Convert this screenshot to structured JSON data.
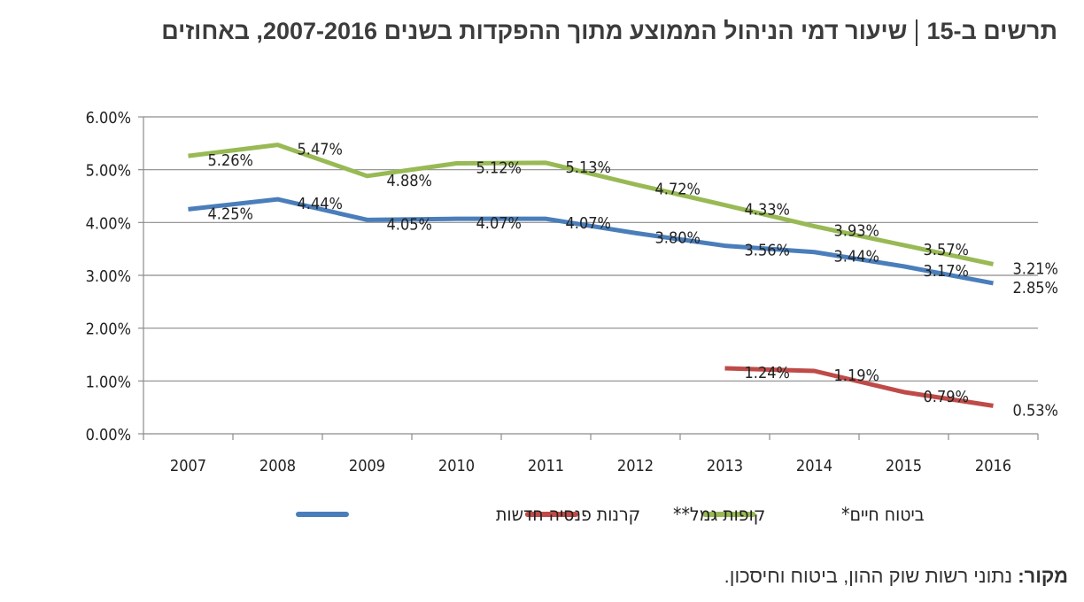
{
  "title": {
    "figure": "תרשים ב-15",
    "text": "שיעור דמי הניהול הממוצע מתוך ההפקדות בשנים 2007-2016, באחוזים"
  },
  "source": {
    "label": "מקור:",
    "text": "נתוני רשות שוק ההון, ביטוח וחיסכון."
  },
  "chart_data": {
    "type": "line",
    "categories": [
      "2007",
      "2008",
      "2009",
      "2010",
      "2011",
      "2012",
      "2013",
      "2014",
      "2015",
      "2016"
    ],
    "ylim": [
      0,
      6
    ],
    "yticks": [
      "0.00%",
      "1.00%",
      "2.00%",
      "3.00%",
      "4.00%",
      "5.00%",
      "6.00%"
    ],
    "grid": true,
    "legend_placement": "bottom",
    "series": [
      {
        "name": "קרנות פנסיה חדשות",
        "color": "#4a7ebb",
        "values": [
          4.25,
          4.44,
          4.05,
          4.07,
          4.07,
          3.8,
          3.56,
          3.44,
          3.17,
          2.85
        ]
      },
      {
        "name": "קופות גמל**",
        "color": "#be4b48",
        "values": [
          null,
          null,
          null,
          null,
          null,
          null,
          1.24,
          1.19,
          0.79,
          0.53
        ]
      },
      {
        "name": "ביטוח חיים*",
        "color": "#98b954",
        "values": [
          5.26,
          5.47,
          4.88,
          5.12,
          5.13,
          4.72,
          4.33,
          3.93,
          3.57,
          3.21
        ]
      }
    ]
  }
}
